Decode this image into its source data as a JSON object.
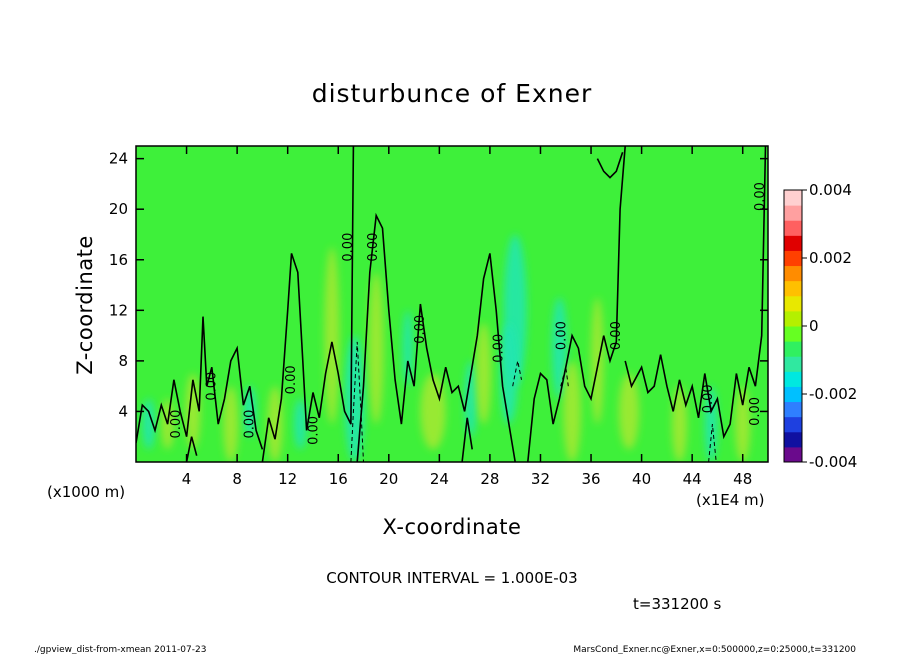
{
  "chart_data": {
    "type": "heatmap",
    "title": "disturbunce of Exner",
    "xlabel": "X-coordinate",
    "ylabel": "Z-coordinate",
    "x_unit_left": "(x1000 m)",
    "x_unit_right": "(x1E4 m)",
    "xlim": [
      0,
      50
    ],
    "ylim": [
      0,
      25
    ],
    "x_ticks": [
      4,
      8,
      12,
      16,
      20,
      24,
      28,
      32,
      36,
      40,
      44,
      48
    ],
    "y_ticks": [
      4,
      8,
      12,
      16,
      20,
      24
    ],
    "contour_interval_text": "CONTOUR INTERVAL = 1.000E-03",
    "time_text": "t=331200 s",
    "contour_label": "0.00",
    "colorbar": {
      "range": [
        -0.004,
        0.004
      ],
      "tick_labels": [
        "0.004",
        "0.002",
        "0",
        "-0.002",
        "-0.004"
      ],
      "tick_values": [
        0.004,
        0.002,
        0,
        -0.002,
        -0.004
      ],
      "colors": [
        "#6a0a8c",
        "#1010a0",
        "#1e40e0",
        "#2f7fff",
        "#00c0ff",
        "#00e8e0",
        "#30e8a0",
        "#30f060",
        "#66ff22",
        "#b4f000",
        "#e8e800",
        "#ffc000",
        "#ff8c00",
        "#ff4000",
        "#e00000",
        "#ff6060",
        "#ffa0a0",
        "#ffd0d0"
      ]
    },
    "background_color": "#3ef03a",
    "positive_color": "#a8e830",
    "negative_color": "#22e6b4"
  },
  "footer": {
    "left": "./gpview_dist-from-xmean   2011-07-23",
    "right": "MarsCond_Exner.nc@Exner,x=0:500000,z=0:25000,t=331200"
  }
}
